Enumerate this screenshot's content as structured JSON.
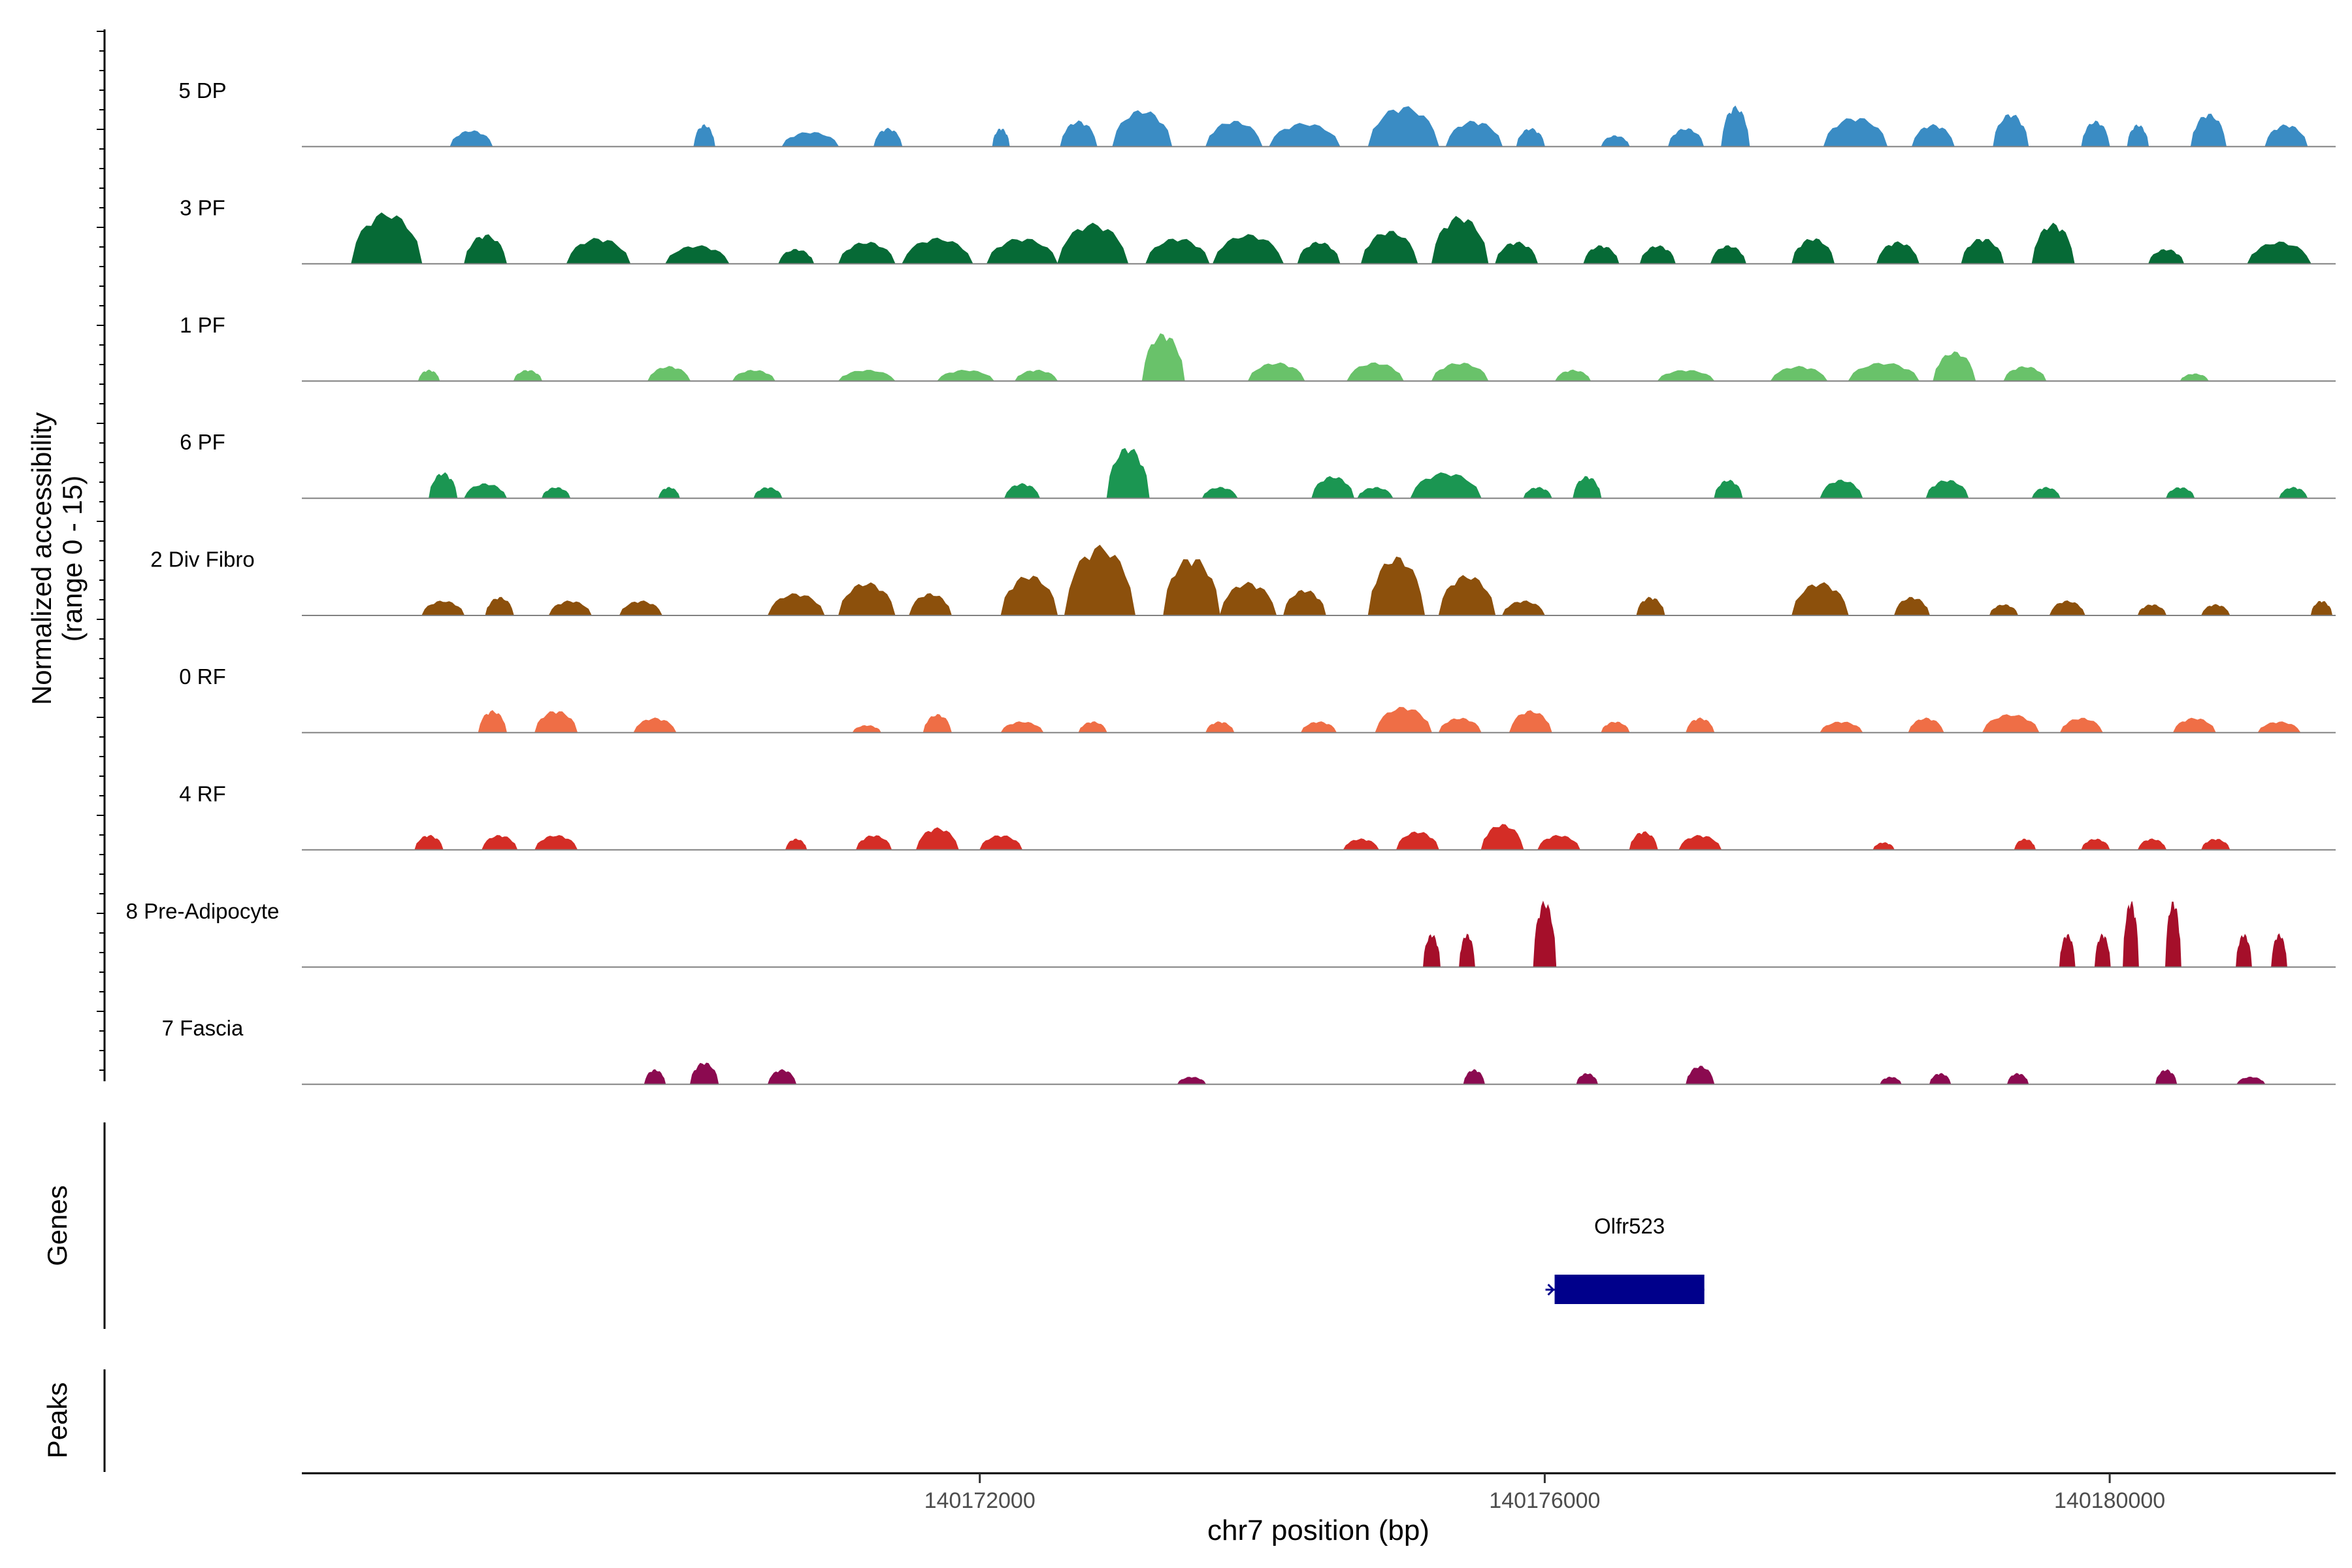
{
  "chart_data": {
    "type": "area",
    "title": "",
    "ylabel_line1": "Normalized accessibility",
    "ylabel_line2": "(range 0 - 15)",
    "xlabel": "chr7 position (bp)",
    "xlim": [
      140167200,
      140181600
    ],
    "ylim": [
      0,
      15
    ],
    "x_ticks": [
      140172000,
      140176000,
      140180000
    ],
    "x_tick_labels": [
      "140172000",
      "140176000",
      "140180000"
    ],
    "track_labels": {
      "genes": "Genes",
      "peaks": "Peaks"
    },
    "series": [
      {
        "name": "5 DP",
        "color": "#3a8cc4",
        "peaks": [
          [
            140168400,
            2.2,
            300
          ],
          [
            140170050,
            3.0,
            150
          ],
          [
            140170800,
            2.0,
            400
          ],
          [
            140171350,
            2.5,
            200
          ],
          [
            140172150,
            2.5,
            120
          ],
          [
            140172700,
            3.5,
            260
          ],
          [
            140173150,
            5.0,
            420
          ],
          [
            140173800,
            3.5,
            400
          ],
          [
            140174300,
            3.2,
            500
          ],
          [
            140175000,
            5.5,
            500
          ],
          [
            140175500,
            3.5,
            400
          ],
          [
            140175900,
            2.5,
            200
          ],
          [
            140176500,
            1.5,
            200
          ],
          [
            140177000,
            2.5,
            250
          ],
          [
            140177350,
            5.5,
            200
          ],
          [
            140178200,
            4.0,
            450
          ],
          [
            140178750,
            3.0,
            300
          ],
          [
            140179300,
            4.5,
            250
          ],
          [
            140179900,
            3.5,
            200
          ],
          [
            140180200,
            3.0,
            150
          ],
          [
            140180700,
            4.5,
            250
          ],
          [
            140181250,
            3.0,
            300
          ]
        ]
      },
      {
        "name": "3 PF",
        "color": "#066a36",
        "peaks": [
          [
            140167800,
            7.0,
            500
          ],
          [
            140168500,
            4.0,
            300
          ],
          [
            140169300,
            3.5,
            450
          ],
          [
            140170000,
            2.5,
            450
          ],
          [
            140170700,
            2.0,
            250
          ],
          [
            140171200,
            3.0,
            400
          ],
          [
            140171700,
            3.5,
            500
          ],
          [
            140172300,
            3.5,
            500
          ],
          [
            140172800,
            5.5,
            500
          ],
          [
            140173400,
            3.5,
            450
          ],
          [
            140173900,
            4.0,
            500
          ],
          [
            140174400,
            3.0,
            300
          ],
          [
            140174900,
            4.5,
            400
          ],
          [
            140175400,
            6.5,
            400
          ],
          [
            140175800,
            3.0,
            300
          ],
          [
            140176400,
            2.5,
            250
          ],
          [
            140176800,
            2.5,
            250
          ],
          [
            140177300,
            2.5,
            250
          ],
          [
            140177900,
            3.5,
            300
          ],
          [
            140178500,
            3.0,
            300
          ],
          [
            140179100,
            3.5,
            300
          ],
          [
            140179600,
            5.5,
            300
          ],
          [
            140180400,
            2.0,
            250
          ],
          [
            140181200,
            3.0,
            450
          ]
        ]
      },
      {
        "name": "1 PF",
        "color": "#69c26a",
        "peaks": [
          [
            140168100,
            1.5,
            150
          ],
          [
            140168800,
            1.5,
            200
          ],
          [
            140169800,
            2.0,
            300
          ],
          [
            140170400,
            1.5,
            300
          ],
          [
            140171200,
            1.5,
            400
          ],
          [
            140171900,
            1.5,
            400
          ],
          [
            140172400,
            1.5,
            300
          ],
          [
            140173300,
            6.5,
            300
          ],
          [
            140174100,
            2.5,
            400
          ],
          [
            140174800,
            2.5,
            400
          ],
          [
            140175400,
            2.5,
            400
          ],
          [
            140176200,
            1.5,
            250
          ],
          [
            140177000,
            1.5,
            400
          ],
          [
            140177800,
            2.0,
            400
          ],
          [
            140178400,
            2.5,
            500
          ],
          [
            140178900,
            4.0,
            300
          ],
          [
            140179400,
            2.0,
            300
          ],
          [
            140180600,
            1.0,
            200
          ]
        ]
      },
      {
        "name": "6 PF",
        "color": "#1b9652",
        "peaks": [
          [
            140168200,
            3.5,
            200
          ],
          [
            140168500,
            2.0,
            300
          ],
          [
            140169000,
            1.5,
            200
          ],
          [
            140169800,
            1.5,
            150
          ],
          [
            140170500,
            1.5,
            200
          ],
          [
            140172300,
            2.0,
            250
          ],
          [
            140173050,
            7.0,
            300
          ],
          [
            140173700,
            1.5,
            250
          ],
          [
            140174500,
            3.0,
            300
          ],
          [
            140174800,
            1.5,
            250
          ],
          [
            140175300,
            3.5,
            500
          ],
          [
            140175950,
            1.5,
            200
          ],
          [
            140176300,
            3.0,
            200
          ],
          [
            140177300,
            2.5,
            200
          ],
          [
            140178100,
            2.5,
            300
          ],
          [
            140178850,
            2.5,
            300
          ],
          [
            140179550,
            1.5,
            200
          ],
          [
            140180500,
            1.5,
            200
          ],
          [
            140181300,
            1.5,
            200
          ]
        ]
      },
      {
        "name": "2 Div Fibro",
        "color": "#8c500c",
        "peaks": [
          [
            140168200,
            2.0,
            300
          ],
          [
            140168600,
            2.5,
            200
          ],
          [
            140169100,
            2.0,
            300
          ],
          [
            140169600,
            2.0,
            300
          ],
          [
            140170700,
            3.0,
            400
          ],
          [
            140171200,
            4.5,
            400
          ],
          [
            140171650,
            3.0,
            300
          ],
          [
            140172350,
            5.5,
            400
          ],
          [
            140172850,
            9.5,
            500
          ],
          [
            140173500,
            8.0,
            400
          ],
          [
            140173900,
            4.5,
            400
          ],
          [
            140174300,
            3.5,
            300
          ],
          [
            140174950,
            8.0,
            400
          ],
          [
            140175450,
            5.5,
            400
          ],
          [
            140175850,
            2.0,
            300
          ],
          [
            140176750,
            2.5,
            200
          ],
          [
            140177950,
            4.5,
            400
          ],
          [
            140178600,
            2.5,
            250
          ],
          [
            140179250,
            1.5,
            200
          ],
          [
            140179700,
            2.0,
            250
          ],
          [
            140180300,
            1.5,
            200
          ],
          [
            140180750,
            1.5,
            200
          ],
          [
            140181500,
            2.0,
            150
          ]
        ]
      },
      {
        "name": "0 RF",
        "color": "#ef6e46",
        "peaks": [
          [
            140168550,
            3.0,
            200
          ],
          [
            140169000,
            3.0,
            300
          ],
          [
            140169700,
            2.0,
            300
          ],
          [
            140171200,
            1.0,
            200
          ],
          [
            140171700,
            2.5,
            200
          ],
          [
            140172300,
            1.5,
            300
          ],
          [
            140172800,
            1.5,
            200
          ],
          [
            140173700,
            1.5,
            200
          ],
          [
            140174400,
            1.5,
            250
          ],
          [
            140175000,
            3.5,
            400
          ],
          [
            140175400,
            2.0,
            300
          ],
          [
            140175900,
            3.0,
            300
          ],
          [
            140176500,
            1.5,
            200
          ],
          [
            140177100,
            2.0,
            200
          ],
          [
            140178100,
            1.5,
            300
          ],
          [
            140178700,
            2.0,
            250
          ],
          [
            140179300,
            2.5,
            400
          ],
          [
            140179800,
            2.0,
            300
          ],
          [
            140180600,
            2.0,
            300
          ],
          [
            140181200,
            1.5,
            300
          ]
        ]
      },
      {
        "name": "4 RF",
        "color": "#d42d26",
        "peaks": [
          [
            140168100,
            2.0,
            200
          ],
          [
            140168600,
            2.0,
            250
          ],
          [
            140169000,
            2.0,
            300
          ],
          [
            140170700,
            1.5,
            150
          ],
          [
            140171250,
            2.0,
            250
          ],
          [
            140171700,
            3.0,
            300
          ],
          [
            140172150,
            2.0,
            300
          ],
          [
            140174700,
            1.5,
            250
          ],
          [
            140175100,
            2.5,
            300
          ],
          [
            140175700,
            3.5,
            300
          ],
          [
            140176100,
            2.0,
            300
          ],
          [
            140176700,
            2.5,
            200
          ],
          [
            140177100,
            2.0,
            300
          ],
          [
            140178400,
            1.0,
            150
          ],
          [
            140179400,
            1.5,
            150
          ],
          [
            140179900,
            1.5,
            200
          ],
          [
            140180300,
            1.5,
            200
          ],
          [
            140180750,
            1.5,
            200
          ]
        ]
      },
      {
        "name": "8 Pre-Adipocyte",
        "color": "#a50f2a",
        "peaks": [
          [
            140175200,
            4.5,
            120
          ],
          [
            140175450,
            4.5,
            110
          ],
          [
            140176000,
            9.0,
            160
          ],
          [
            140179700,
            4.5,
            110
          ],
          [
            140179950,
            4.5,
            110
          ],
          [
            140180150,
            9.0,
            110
          ],
          [
            140180450,
            9.0,
            110
          ],
          [
            140180950,
            4.5,
            110
          ],
          [
            140181200,
            4.5,
            110
          ]
        ]
      },
      {
        "name": "7 Fascia",
        "color": "#8b0a50",
        "peaks": [
          [
            140169700,
            2.0,
            150
          ],
          [
            140170050,
            3.0,
            200
          ],
          [
            140170600,
            2.0,
            200
          ],
          [
            140173500,
            1.0,
            200
          ],
          [
            140175500,
            2.0,
            150
          ],
          [
            140176300,
            1.5,
            150
          ],
          [
            140177100,
            2.5,
            200
          ],
          [
            140178450,
            1.0,
            150
          ],
          [
            140178800,
            1.5,
            150
          ],
          [
            140179350,
            1.5,
            150
          ],
          [
            140180400,
            2.0,
            150
          ],
          [
            140181000,
            1.0,
            200
          ]
        ]
      }
    ],
    "genes": [
      {
        "name": "Olfr523",
        "start": 140176070,
        "end": 140177130,
        "strand": "-",
        "color": "#00008b"
      }
    ],
    "peaks_track": []
  }
}
